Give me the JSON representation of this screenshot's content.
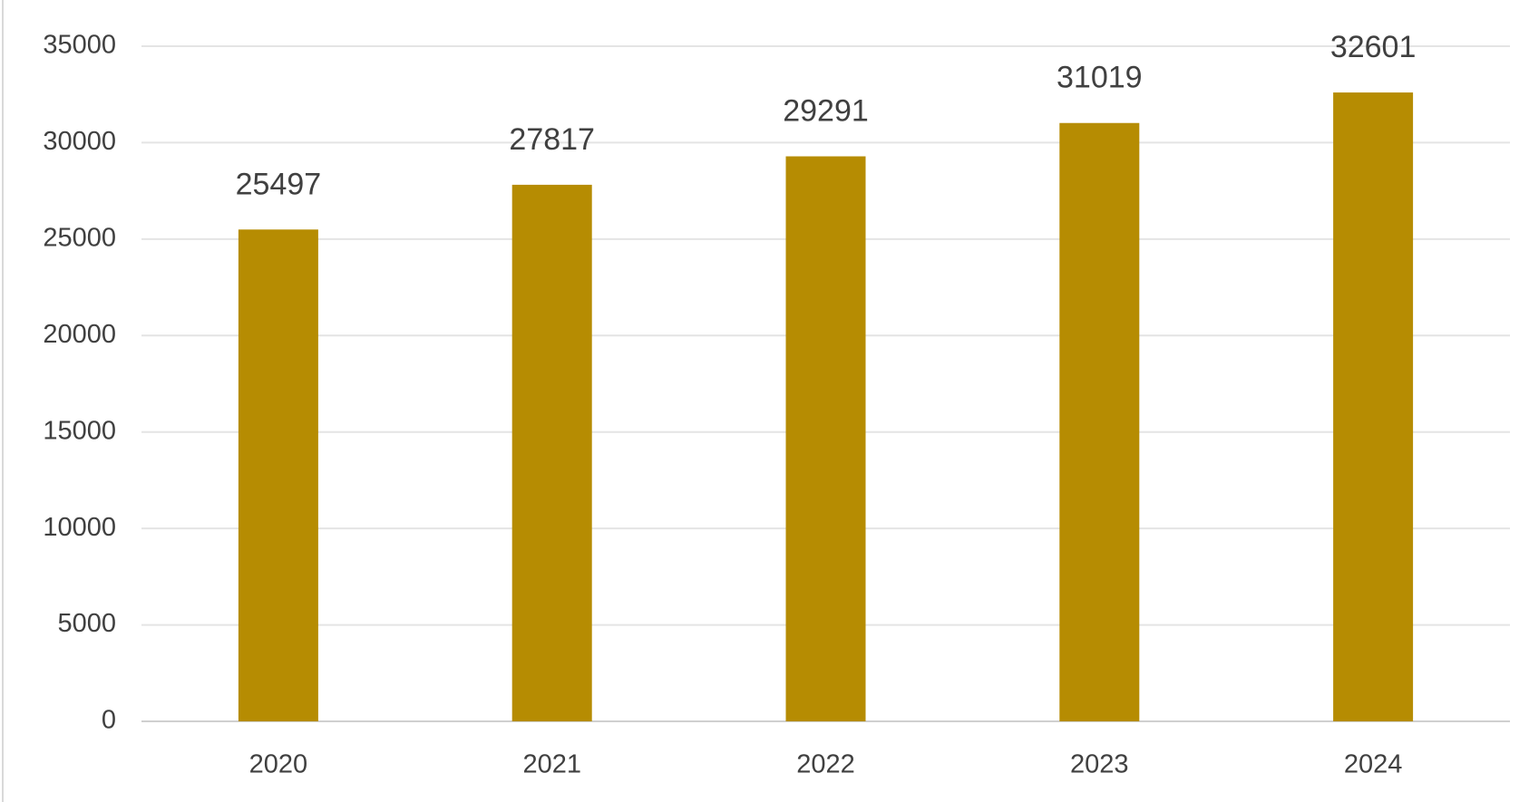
{
  "chart_data": {
    "type": "bar",
    "categories": [
      "2020",
      "2021",
      "2022",
      "2023",
      "2024"
    ],
    "values": [
      25497,
      27817,
      29291,
      31019,
      32601
    ],
    "color": "#b68c02",
    "ylim": [
      0,
      35000
    ],
    "yticks": [
      0,
      5000,
      10000,
      15000,
      20000,
      25000,
      30000,
      35000
    ],
    "grid": true
  }
}
